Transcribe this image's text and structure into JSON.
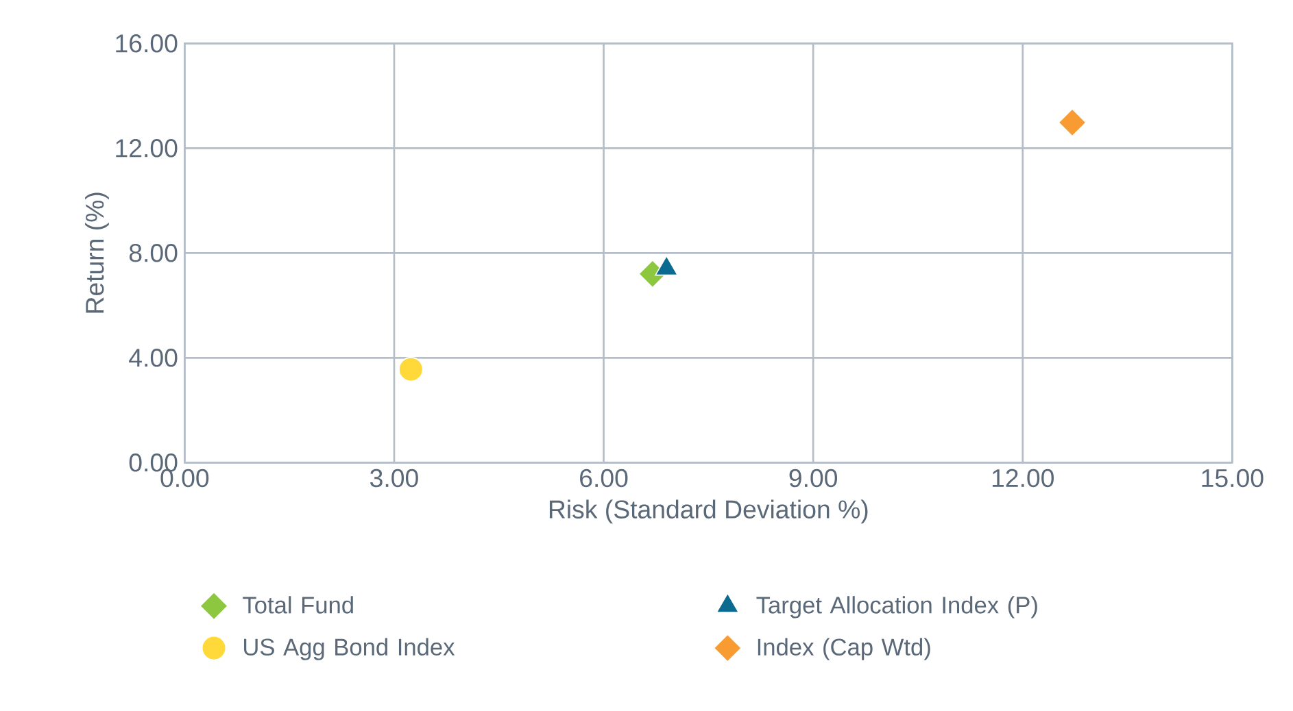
{
  "chart_data": {
    "type": "scatter",
    "xlabel": "Risk (Standard Deviation %)",
    "ylabel": "Return (%)",
    "xlim": [
      0,
      15
    ],
    "ylim": [
      0,
      16
    ],
    "xticks": [
      {
        "value": 0,
        "label": "0.00"
      },
      {
        "value": 3,
        "label": "3.00"
      },
      {
        "value": 6,
        "label": "6.00"
      },
      {
        "value": 9,
        "label": "9.00"
      },
      {
        "value": 12,
        "label": "12.00"
      },
      {
        "value": 15,
        "label": "15.00"
      }
    ],
    "yticks": [
      {
        "value": 0,
        "label": "0.00"
      },
      {
        "value": 4,
        "label": "4.00"
      },
      {
        "value": 8,
        "label": "8.00"
      },
      {
        "value": 12,
        "label": "12.00"
      },
      {
        "value": 16,
        "label": "16.00"
      }
    ],
    "grid": true,
    "legend": "bottom",
    "series": [
      {
        "name": "Total Fund",
        "color": "#8dc63f",
        "marker": "diamond",
        "x": [
          6.7
        ],
        "values": [
          7.2
        ]
      },
      {
        "name": "Target Allocation Index (P)",
        "color": "#0b6a8f",
        "marker": "triangle",
        "x": [
          6.9
        ],
        "values": [
          7.4
        ]
      },
      {
        "name": "US Agg Bond Index",
        "color": "#ffd93a",
        "marker": "circle",
        "x": [
          3.24
        ],
        "values": [
          3.56
        ]
      },
      {
        "name": "Index (Cap Wtd)",
        "color": "#f89b32",
        "marker": "diamond",
        "x": [
          12.71
        ],
        "values": [
          12.98
        ]
      }
    ]
  }
}
